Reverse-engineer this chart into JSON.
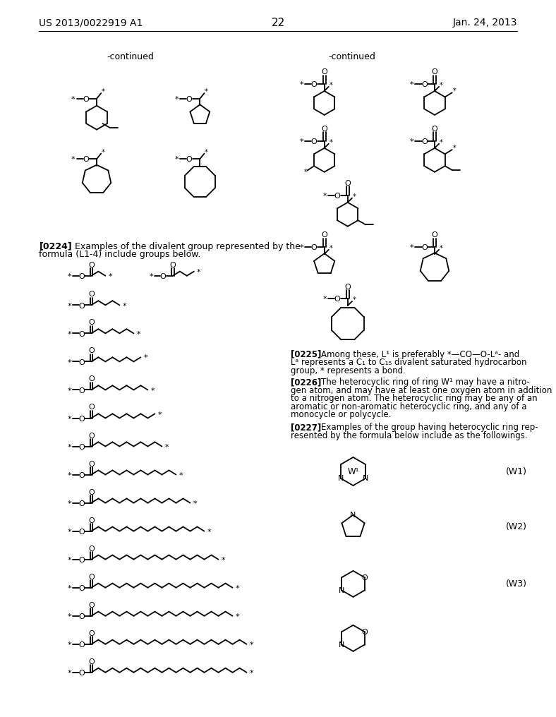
{
  "background_color": "#ffffff",
  "header_left": "US 2013/0022919 A1",
  "header_right": "Jan. 24, 2013",
  "page_number": "22"
}
